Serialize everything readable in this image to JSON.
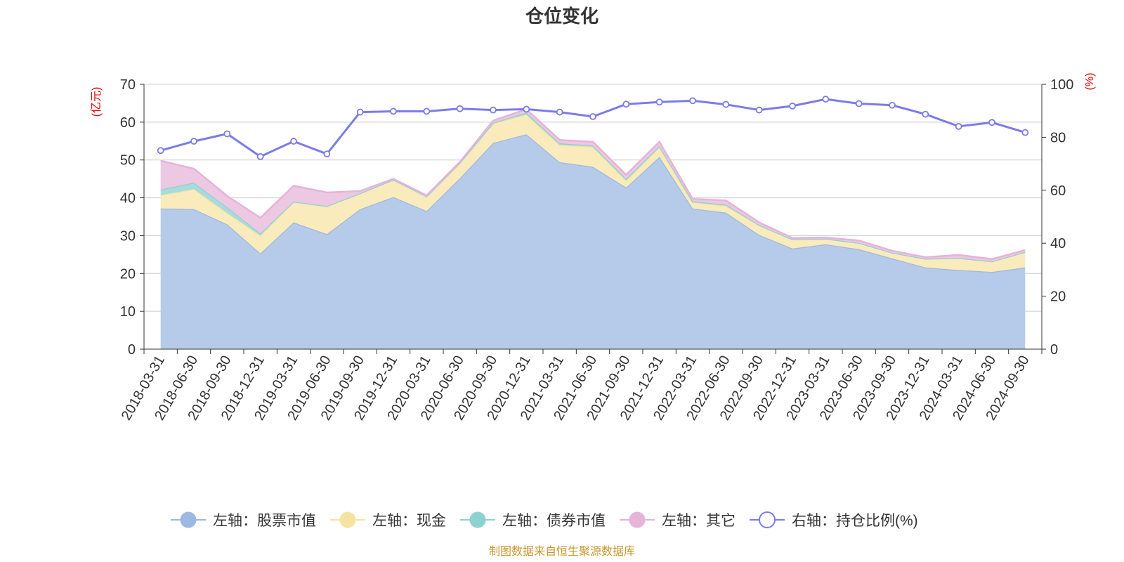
{
  "chart_data": {
    "type": "area",
    "title": "仓位变化",
    "left_unit": "(亿元)",
    "right_unit": "(%)",
    "source": "制图数据来自恒生聚源数据库",
    "ylim_left": [
      0,
      70
    ],
    "ylim_right": [
      0,
      100
    ],
    "left_ticks": [
      "0",
      "10",
      "20",
      "30",
      "40",
      "50",
      "60",
      "70"
    ],
    "right_ticks": [
      "0",
      "20",
      "40",
      "60",
      "80",
      "100"
    ],
    "categories": [
      "2018-03-31",
      "2018-06-30",
      "2018-09-30",
      "2018-12-31",
      "2019-03-31",
      "2019-06-30",
      "2019-09-30",
      "2019-12-31",
      "2020-03-31",
      "2020-06-30",
      "2020-09-30",
      "2020-12-31",
      "2021-03-31",
      "2021-06-30",
      "2021-09-30",
      "2021-12-31",
      "2022-03-31",
      "2022-06-30",
      "2022-09-30",
      "2022-12-31",
      "2023-03-31",
      "2023-06-30",
      "2023-09-30",
      "2023-12-31",
      "2024-03-31",
      "2024-06-30",
      "2024-09-30"
    ],
    "stacked_series": [
      {
        "name": "左轴：股票市值",
        "color": "#9db8e1",
        "fill": "#b6cbea",
        "values": [
          37.2,
          37.0,
          33.0,
          25.3,
          33.5,
          30.4,
          37.0,
          40.2,
          36.5,
          45.2,
          54.5,
          56.8,
          49.4,
          48.2,
          42.7,
          50.8,
          37.2,
          36.1,
          30.2,
          26.6,
          27.7,
          26.4,
          24.0,
          21.6,
          20.9,
          20.4,
          21.6
        ]
      },
      {
        "name": "左轴：现金",
        "color": "#f6e3a1",
        "fill": "#f9ebbc",
        "values": [
          3.5,
          5.3,
          3.0,
          4.7,
          5.5,
          7.4,
          4.2,
          4.6,
          3.9,
          4.1,
          5.3,
          5.2,
          4.6,
          5.3,
          1.9,
          2.5,
          1.6,
          1.8,
          2.6,
          2.4,
          1.5,
          1.7,
          1.5,
          2.3,
          3.2,
          2.8,
          4.1
        ]
      },
      {
        "name": "左轴：债券市值",
        "color": "#8dd1d0",
        "fill": "#a8dcdc",
        "values": [
          1.5,
          1.7,
          1.5,
          0.6,
          0,
          0,
          0,
          0,
          0,
          0,
          0,
          0.5,
          0.4,
          0.3,
          0.4,
          0.4,
          0.3,
          0.3,
          0,
          0,
          0,
          0,
          0,
          0,
          0,
          0,
          0
        ]
      },
      {
        "name": "左轴：其它",
        "color": "#e6b3d9",
        "fill": "#edc8e2",
        "values": [
          7.6,
          3.7,
          3.0,
          4.1,
          4.2,
          3.6,
          0.6,
          0.2,
          0.2,
          0.2,
          0.6,
          0.9,
          0.9,
          1.0,
          1.1,
          1.1,
          0.6,
          1.1,
          0.7,
          0.4,
          0.3,
          0.6,
          0.5,
          0.4,
          0.8,
          0.6,
          0.5
        ]
      }
    ],
    "line_series": {
      "name": "右轴：持仓比例(%)",
      "color": "#7b7bea",
      "axis": "right",
      "values": [
        75.0,
        78.5,
        81.3,
        72.7,
        78.5,
        73.7,
        89.5,
        89.8,
        89.8,
        90.8,
        90.3,
        90.6,
        89.5,
        87.8,
        92.5,
        93.3,
        93.8,
        92.4,
        90.3,
        91.8,
        94.4,
        92.7,
        92.1,
        88.7,
        84.1,
        85.6,
        81.8
      ]
    }
  }
}
